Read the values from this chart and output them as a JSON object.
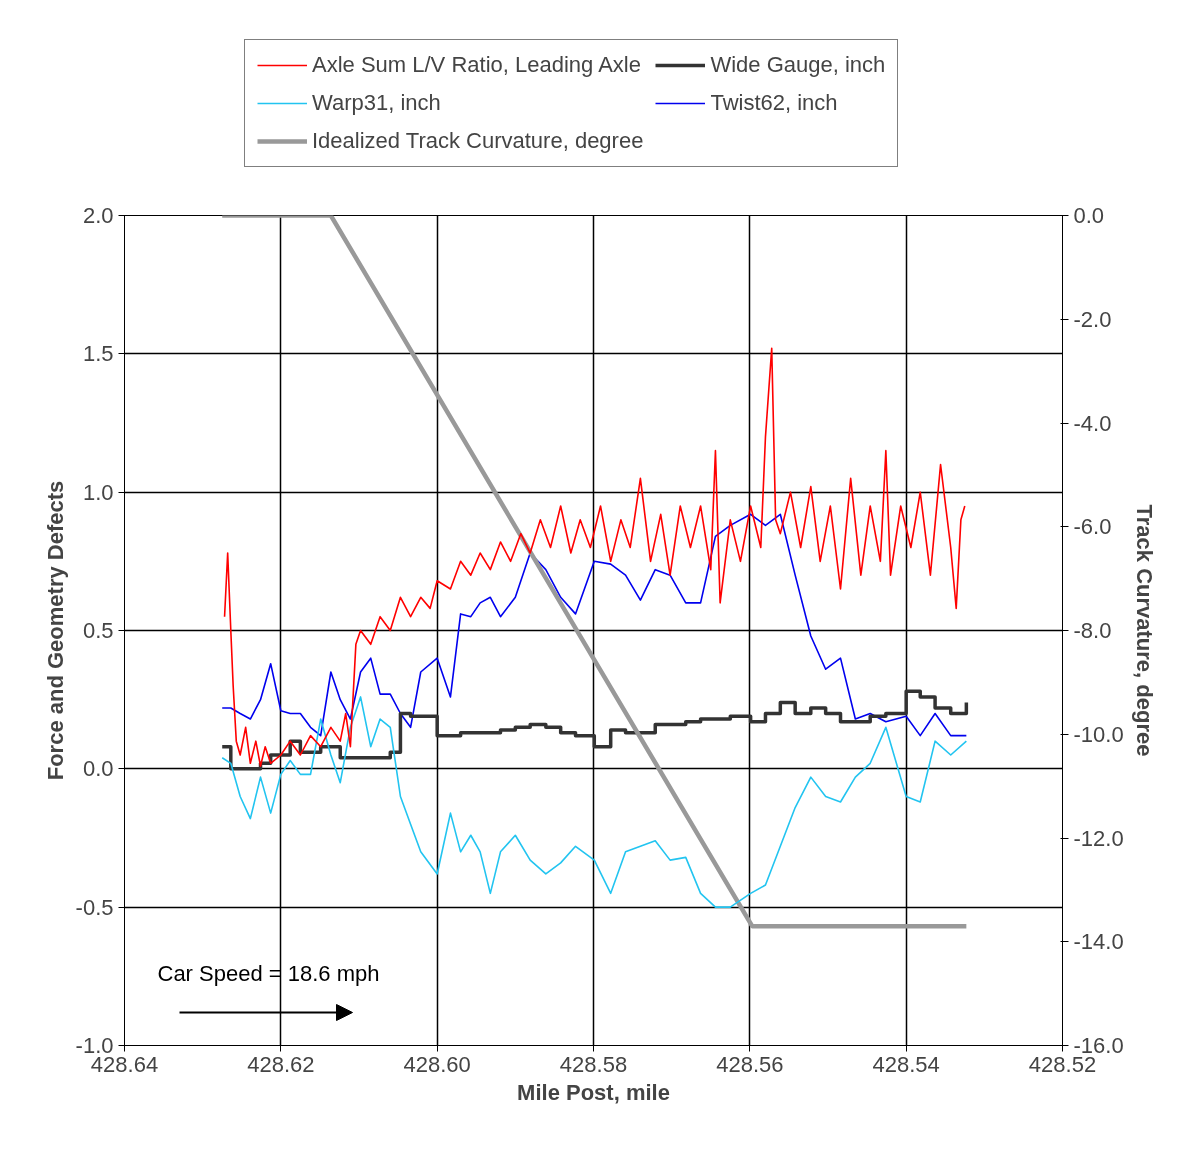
{
  "chart_data": {
    "type": "line",
    "xlabel": "Mile Post, mile",
    "ylabel": "Force and Geometry Defects",
    "y2label": "Track Curvature, degree",
    "xlim": [
      428.64,
      428.52
    ],
    "ylim": [
      -1.0,
      2.0
    ],
    "y2lim": [
      -16.0,
      0.0
    ],
    "xticks": [
      {
        "value": 428.64,
        "label": "428.64"
      },
      {
        "value": 428.62,
        "label": "428.62"
      },
      {
        "value": 428.6,
        "label": "428.60"
      },
      {
        "value": 428.58,
        "label": "428.58"
      },
      {
        "value": 428.56,
        "label": "428.56"
      },
      {
        "value": 428.54,
        "label": "428.54"
      },
      {
        "value": 428.52,
        "label": "428.52"
      }
    ],
    "yticks": [
      {
        "value": -1.0,
        "label": "-1.0"
      },
      {
        "value": -0.5,
        "label": "-0.5"
      },
      {
        "value": 0.0,
        "label": "0.0"
      },
      {
        "value": 0.5,
        "label": "0.5"
      },
      {
        "value": 1.0,
        "label": "1.0"
      },
      {
        "value": 1.5,
        "label": "1.5"
      },
      {
        "value": 2.0,
        "label": "2.0"
      }
    ],
    "y2ticks": [
      {
        "value": -16.0,
        "label": "-16.0"
      },
      {
        "value": -14.0,
        "label": "-14.0"
      },
      {
        "value": -12.0,
        "label": "-12.0"
      },
      {
        "value": -10.0,
        "label": "-10.0"
      },
      {
        "value": -8.0,
        "label": "-8.0"
      },
      {
        "value": -6.0,
        "label": "-6.0"
      },
      {
        "value": -4.0,
        "label": "-4.0"
      },
      {
        "value": -2.0,
        "label": "-2.0"
      },
      {
        "value": 0.0,
        "label": "0.0"
      }
    ],
    "grid": true,
    "legend": "top",
    "marker": "none",
    "line_style": "solid",
    "annotations": [
      "Car Speed = 18.6 mph"
    ],
    "x": [
      428.6275,
      428.6264,
      428.6252,
      428.6239,
      428.6226,
      428.6213,
      428.62,
      428.6188,
      428.6175,
      428.6162,
      428.6149,
      428.6136,
      428.6124,
      428.6111,
      428.6098,
      428.6085,
      428.6073,
      428.606,
      428.6047,
      428.6034,
      428.6021,
      428.6,
      428.5983,
      428.597,
      428.5957,
      428.5945,
      428.5932,
      428.5919,
      428.59,
      428.5881,
      428.5861,
      428.5842,
      428.5823,
      428.5799,
      428.5778,
      428.5759,
      428.574,
      428.5721,
      428.5702,
      428.5682,
      428.5663,
      428.5644,
      428.5625,
      428.5599,
      428.558,
      428.5561,
      428.5542,
      428.5522,
      428.5503,
      428.5484,
      428.5465,
      428.5446,
      428.5426,
      428.54,
      428.5382,
      428.5363,
      428.5343,
      428.5323
    ],
    "series": [
      {
        "name": "Axle Sum L/V Ratio, Leading Axle",
        "color": "#ff0000",
        "x": [
          428.6272,
          428.6268,
          428.6264,
          428.6261,
          428.6257,
          428.6252,
          428.6245,
          428.6239,
          428.6232,
          428.6226,
          428.622,
          428.6213,
          428.62,
          428.6188,
          428.6175,
          428.6162,
          428.6149,
          428.6136,
          428.6124,
          428.6117,
          428.6111,
          428.6104,
          428.6098,
          428.6085,
          428.6073,
          428.606,
          428.6047,
          428.6034,
          428.6021,
          428.6009,
          428.6,
          428.5983,
          428.597,
          428.5957,
          428.5945,
          428.5932,
          428.5919,
          428.5906,
          428.5893,
          428.5881,
          428.5868,
          428.5855,
          428.5842,
          428.5829,
          428.5817,
          428.5804,
          428.5791,
          428.5778,
          428.5765,
          428.5753,
          428.574,
          428.5727,
          428.5714,
          428.5702,
          428.5689,
          428.5676,
          428.5663,
          428.565,
          428.5644,
          428.5638,
          428.5625,
          428.5612,
          428.5599,
          428.5586,
          428.558,
          428.5572,
          428.5567,
          428.5561,
          428.5548,
          428.5535,
          428.5522,
          428.551,
          428.5497,
          428.5484,
          428.5471,
          428.5458,
          428.5446,
          428.5433,
          428.5426,
          428.542,
          428.5407,
          428.5394,
          428.5382,
          428.5369,
          428.5356,
          428.5343,
          428.5336,
          428.533,
          428.5325
        ],
        "values": [
          0.55,
          0.78,
          0.5,
          0.3,
          0.1,
          0.05,
          0.15,
          0.02,
          0.1,
          0.01,
          0.08,
          0.02,
          0.05,
          0.1,
          0.05,
          0.12,
          0.08,
          0.15,
          0.1,
          0.2,
          0.08,
          0.45,
          0.5,
          0.45,
          0.55,
          0.5,
          0.62,
          0.55,
          0.62,
          0.58,
          0.68,
          0.65,
          0.75,
          0.7,
          0.78,
          0.72,
          0.82,
          0.75,
          0.85,
          0.78,
          0.9,
          0.8,
          0.95,
          0.78,
          0.9,
          0.8,
          0.95,
          0.75,
          0.9,
          0.8,
          1.05,
          0.75,
          0.92,
          0.7,
          0.95,
          0.8,
          0.95,
          0.72,
          1.15,
          0.6,
          0.9,
          0.75,
          0.95,
          0.8,
          1.2,
          1.52,
          0.9,
          0.85,
          1.0,
          0.8,
          1.02,
          0.75,
          0.95,
          0.65,
          1.05,
          0.7,
          0.95,
          0.75,
          1.15,
          0.7,
          0.95,
          0.8,
          1.0,
          0.7,
          1.1,
          0.8,
          0.58,
          0.9,
          0.95
        ]
      },
      {
        "name": "Warp31, inch",
        "color": "#22c4f0",
        "values": [
          0.04,
          0.02,
          -0.1,
          -0.18,
          -0.03,
          -0.16,
          -0.02,
          0.03,
          -0.02,
          -0.02,
          0.18,
          0.05,
          -0.05,
          0.15,
          0.26,
          0.08,
          0.18,
          0.15,
          -0.1,
          -0.2,
          -0.3,
          -0.38,
          -0.16,
          -0.3,
          -0.24,
          -0.3,
          -0.45,
          -0.3,
          -0.24,
          -0.33,
          -0.38,
          -0.34,
          -0.28,
          -0.33,
          -0.45,
          -0.3,
          -0.28,
          -0.26,
          -0.33,
          -0.32,
          -0.45,
          -0.5,
          -0.5,
          -0.45,
          -0.42,
          -0.28,
          -0.14,
          -0.03,
          -0.1,
          -0.12,
          -0.03,
          0.02,
          0.15,
          -0.1,
          -0.12,
          0.1,
          0.05,
          0.1
        ]
      },
      {
        "name": "Idealized Track Curvature, degree",
        "color": "#999999",
        "axis": "y2",
        "x": [
          428.6275,
          428.6136,
          428.5597,
          428.5323
        ],
        "values": [
          0.0,
          0.0,
          -13.7,
          -13.7
        ]
      },
      {
        "name": "Wide Gauge, inch",
        "color": "#333333",
        "type": "step",
        "values": [
          0.08,
          0.0,
          0.0,
          0.0,
          0.02,
          0.05,
          0.05,
          0.1,
          0.06,
          0.06,
          0.08,
          0.08,
          0.04,
          0.04,
          0.04,
          0.04,
          0.04,
          0.06,
          0.2,
          0.19,
          0.19,
          0.12,
          0.12,
          0.13,
          0.13,
          0.13,
          0.13,
          0.14,
          0.15,
          0.16,
          0.15,
          0.13,
          0.12,
          0.08,
          0.14,
          0.13,
          0.13,
          0.16,
          0.16,
          0.17,
          0.18,
          0.18,
          0.19,
          0.17,
          0.2,
          0.24,
          0.2,
          0.22,
          0.2,
          0.17,
          0.17,
          0.19,
          0.2,
          0.28,
          0.26,
          0.22,
          0.2,
          0.24
        ]
      },
      {
        "name": "Twist62, inch",
        "color": "#0000ee",
        "values": [
          0.22,
          0.22,
          0.2,
          0.18,
          0.25,
          0.38,
          0.21,
          0.2,
          0.2,
          0.15,
          0.12,
          0.35,
          0.25,
          0.18,
          0.35,
          0.4,
          0.27,
          0.27,
          0.2,
          0.15,
          0.35,
          0.4,
          0.26,
          0.56,
          0.55,
          0.6,
          0.62,
          0.55,
          0.62,
          0.78,
          0.72,
          0.62,
          0.56,
          0.75,
          0.74,
          0.7,
          0.61,
          0.72,
          0.7,
          0.6,
          0.6,
          0.84,
          0.88,
          0.92,
          0.88,
          0.92,
          0.7,
          0.48,
          0.36,
          0.4,
          0.18,
          0.2,
          0.17,
          0.19,
          0.12,
          0.2,
          0.12,
          0.12
        ]
      }
    ]
  }
}
